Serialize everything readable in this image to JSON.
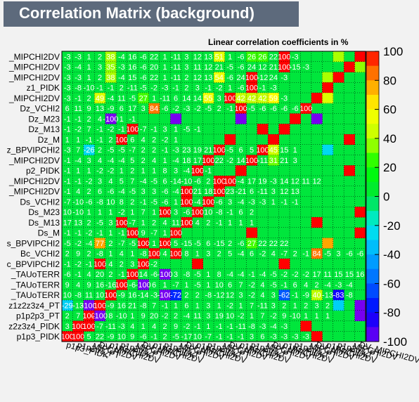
{
  "title": "Correlation Matrix (background)",
  "subtitle": "Linear correlation coefficients in %",
  "chart_data": {
    "type": "heatmap",
    "title": "Correlation Matrix (background)",
    "zlabel": "Linear correlation coefficients in %",
    "zlim": [
      -100,
      100
    ],
    "colorbar_ticks": [
      100,
      80,
      60,
      40,
      20,
      0,
      -20,
      -40,
      -60,
      -80,
      -100
    ],
    "grid": true,
    "y_labels_top_to_bottom": [
      "_MIPCHI2DV",
      "_MIPCHI2DV",
      "_MIPCHI2DV",
      "z1_PIDK",
      "_MIPCHI2DV",
      "Dz_VCHI2",
      "Dz_M23",
      "Dz_M13",
      "Dz_M",
      "z_BPVIPCHI2",
      "_MIPCHI2DV",
      "p2_PIDK",
      "_MIPCHI2DV",
      "_MIPCHI2DV",
      "Ds_VCHI2",
      "Ds_M23",
      "Ds_M13",
      "Ds_M",
      "s_BPVIPCHI2",
      "Bc_VCHI2",
      "c_BPVIPCHI2",
      "_TAUoTERR",
      "_TAUoTERR",
      "_TAUoTERR",
      "z1z2z3z4_PT",
      "p1p2p3_PT",
      "z2z3z4_PIDK",
      "p1p3_PIDK"
    ],
    "x_labels_visible": [
      "p1p3_PIDK",
      "p1p2p3_PT",
      "_MIPCHI2DV",
      "DV_MIPCHI2DV"
    ],
    "row_values": [
      "-3 -3 1 2 38 -4 16 -6 22 1 -11 3 12 13 51 1 -6 26 26 22 100",
      "-3 -4 1 3 35 -3 16 -6 20 1 -11 3 11 12 21 -5 -6 24 12 21 100 -15",
      "-3 -3 1 2 38 -4 15 -6 22 1 -11 2 12 13 54 -6 24 100 -12 24",
      "-3 -8 -10 -1 -1 2 -11 -5 -2 -3 -1 2 3 -1 -2 1 -6 100 -1",
      "-3 -1 2 49 -4 11 -5 27 1 -11 6 14 14 55 3 100 42 42 42 59",
      "6 11 9 13 -9 6 17 3 84 -6 -2 -3 -2 -5 2 -1 100 -5 -6 -6 -6 -6",
      "-1 -1 2 4 -100 1",
      "-1 -2 7 -1 -2 -1 100 -7 -1 3 1 -5",
      "1 1 -1 -1 2 100 6 4 2 -2",
      "-3 7 -26 2 -5 -5 -7 2 2 -1 -3 23 19 21 100 -5 6 5 45 15 1",
      "-1 -4 3 4 -4 -4 5 2 4 1 -4 18 17 100 22 -2 14 -11 31 21 3",
      "-1 1 1 -2 -2 1 2 1 1 8 3 -4 100",
      "-1 -1 -2 3 4 5 7 -4 -5 6 -14 -10 -6 2 100 -4 17 19 -3 14 12 11 12",
      "-1 4 2 6 -6 -4 -5 3 3 -6 -4 100 21 18 23 -21 6 -11 3 12 13",
      "-7 -10 -6 -8 10 8 2 -1 -5 -6 1 100 -4 -6 3 -4 -3 -3 1 -1 -1",
      "10 -10 1 1 1 -2 1 7 1 100 3 -6 10 -8 -1 6 2",
      "17 13 2 -5 3 100 -7 1 2 4 11 4 2 -1 1 1 1",
      "-1 -1 -2 -1 1 -1 100 9 -7 1",
      "-5 -2 -4 77 2 -7 -5 100 1 5 -15 -5 6 -15 2 -6 27 22 22 22",
      "2 9 2 -8 1 4 1 -8 4 100 8 1 3 2 5 -4 6 -2 4 -7 2 -1 84 -5 3 -6 -6 -6",
      "-1 -2 -1 100 4 2 3 -2",
      "-6 -1 4 20 2 -1 14 -6 -100 3 -8 -5 1 8 -4 -4 -1 -4 -5 -2 -2 -2 17 11 15 15 16 15",
      "9 4 9 16 -16 -6 -100 6 1 -7 1 -5 1 10 6 7 -2 4 -5 -1 6 4 2 -4 -3 -4",
      "10 -8 11 10 -9 16 -14 -3 -100 -72 2 2 -8 -12 12 3 -2 4 3 -62 -1 -9 40 -13 -83 -8",
      "-29 -13 -100 -9 16 21 -8 7 -1 1 6 1 3 1 -2 1 7 -11 3 2 1 2 3 2",
      "2 7 -100 8 -10 1 9 20 -2 2 -4 11 3 19 10 -2 1 7 -2 9 -10 1 1 1",
      "3 100 -7 -11 -3 4 1 4 2 9 -2 -1 1 -1 -1 -11 -8 -3 -4 -3",
      "100 5 22 -9 10 9 -6 -1 2 -5 -17 10 -7 -1 -1 -1 3 6 -3 -3 -3 -3"
    ]
  }
}
